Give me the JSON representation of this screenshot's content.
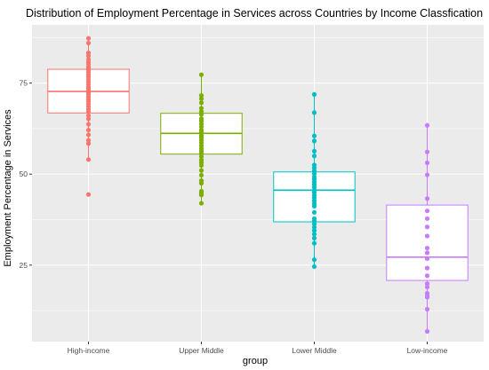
{
  "chart_data": {
    "type": "boxplot",
    "title": "Distribution of Employment Percentage in Services across Countries by Income Classfication",
    "xlabel": "group",
    "ylabel": "Employment Percentage in Services",
    "ylim": [
      4,
      91
    ],
    "yticks": [
      25,
      50,
      75
    ],
    "y_minor_ticks": [
      12.5,
      37.5,
      62.5,
      87.5
    ],
    "grid": true,
    "legend": "none",
    "categories": [
      "High-income",
      "Upper Middle",
      "Lower Middle",
      "Low-income"
    ],
    "colors": [
      "#F8766D",
      "#7CAE00",
      "#00BFC4",
      "#C77CFF"
    ],
    "panel_background": "#EBEBEB",
    "grid_color": "#FFFFFF",
    "boxes": [
      {
        "q1": 66.8,
        "median": 72.7,
        "q3": 78.8,
        "whisker_low": 54.0,
        "whisker_high": 87.3
      },
      {
        "q1": 55.5,
        "median": 61.2,
        "q3": 66.7,
        "whisker_low": 42.0,
        "whisker_high": 77.3
      },
      {
        "q1": 36.9,
        "median": 45.6,
        "q3": 50.6,
        "whisker_low": 24.6,
        "whisker_high": 71.9
      },
      {
        "q1": 20.8,
        "median": 27.2,
        "q3": 41.5,
        "whisker_low": 6.8,
        "whisker_high": 63.4
      }
    ],
    "points": [
      [
        87.3,
        86.0,
        83.3,
        82.5,
        81.5,
        80.8,
        80.2,
        79.5,
        79.0,
        78.6,
        78.0,
        77.3,
        76.7,
        76.0,
        75.3,
        74.6,
        73.9,
        73.5,
        73.0,
        72.4,
        71.9,
        71.2,
        70.5,
        70.0,
        69.3,
        68.6,
        67.9,
        67.2,
        66.1,
        65.2,
        63.7,
        62.1,
        60.8,
        59.3,
        58.4,
        54.0,
        44.4
      ],
      [
        77.3,
        71.6,
        70.7,
        69.6,
        68.1,
        67.2,
        66.4,
        65.2,
        64.6,
        63.8,
        63.0,
        62.1,
        61.5,
        60.6,
        60.0,
        59.3,
        58.6,
        57.8,
        57.0,
        56.3,
        55.6,
        54.8,
        53.9,
        53.2,
        52.4,
        51.0,
        49.7,
        48.2,
        47.5,
        45.3,
        44.8,
        44.3,
        42.0
      ],
      [
        71.9,
        66.9,
        60.5,
        59.1,
        56.3,
        55.0,
        52.5,
        51.7,
        50.9,
        50.1,
        49.2,
        48.6,
        47.8,
        47.1,
        46.4,
        45.6,
        45.0,
        44.2,
        43.5,
        42.7,
        41.9,
        41.2,
        39.5,
        37.8,
        37.1,
        36.3,
        35.4,
        34.5,
        33.5,
        32.4,
        31.0,
        26.5,
        24.6
      ],
      [
        63.4,
        56.1,
        53.1,
        49.8,
        43.3,
        39.9,
        37.8,
        35.5,
        33.0,
        29.7,
        28.4,
        26.8,
        24.2,
        22.1,
        19.9,
        19.0,
        17.3,
        16.6,
        16.2,
        12.9,
        6.8
      ]
    ]
  }
}
